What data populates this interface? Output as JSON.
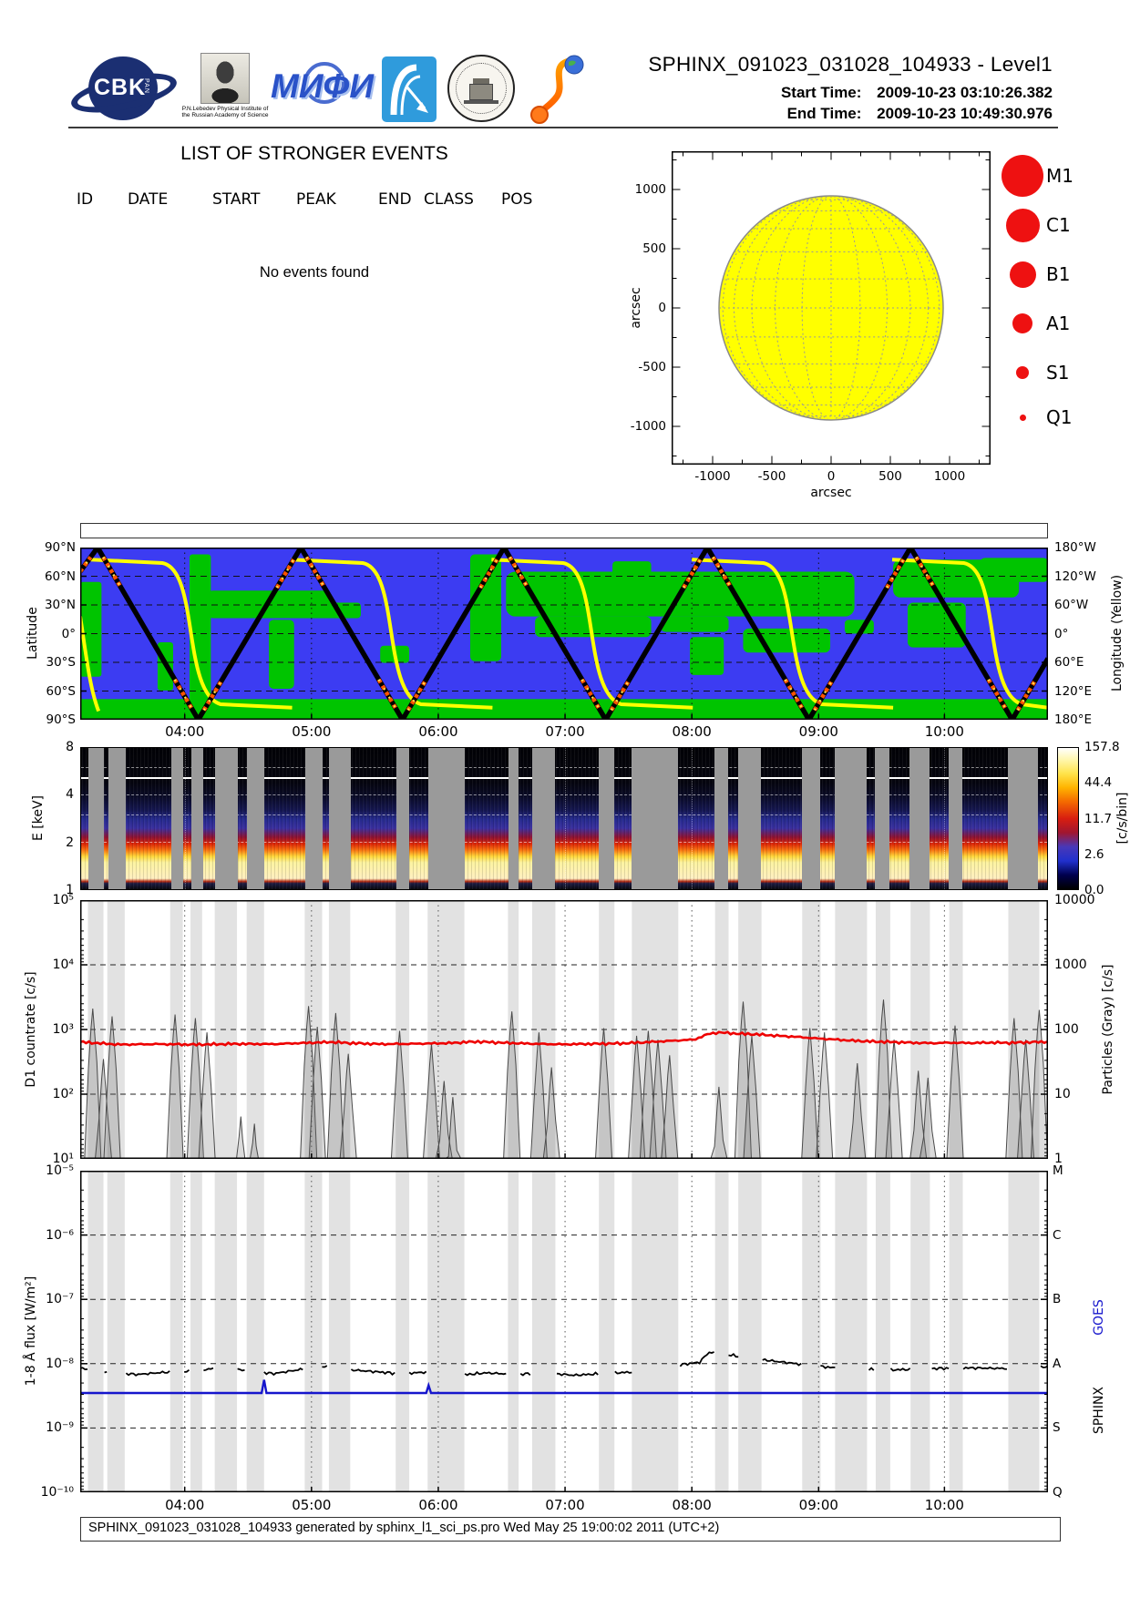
{
  "header": {
    "title": "SPHINX_091023_031028_104933 - Level1",
    "start_label": "Start Time:",
    "start_value": "2009-10-23   03:10:26.382",
    "end_label": "End Time:",
    "end_value": "2009-10-23   10:49:30.976",
    "logos": {
      "cbk_text": "CBK",
      "cbk_sub": "PAN",
      "lebedev_caption": "P.N.Lebedev Physical Institute of the Russian Academy of Science",
      "mephi_text": "МИФИ"
    }
  },
  "events": {
    "title": "LIST OF STRONGER EVENTS",
    "columns": [
      "ID",
      "DATE",
      "START",
      "PEAK",
      "END",
      "CLASS",
      "POS"
    ],
    "empty_message": "No events found"
  },
  "time_axis": {
    "hours": [
      "04:00",
      "05:00",
      "06:00",
      "07:00",
      "08:00",
      "09:00",
      "10:00"
    ],
    "positions_pct": [
      10.8,
      23.9,
      37.0,
      50.1,
      63.2,
      76.3,
      89.3
    ],
    "gaps_pct": [
      [
        0.8,
        1.6
      ],
      [
        2.8,
        1.8
      ],
      [
        9.3,
        1.3
      ],
      [
        11.4,
        1.2
      ],
      [
        13.9,
        2.3
      ],
      [
        17.2,
        1.8
      ],
      [
        23.2,
        1.8
      ],
      [
        25.7,
        2.2
      ],
      [
        32.6,
        1.4
      ],
      [
        35.9,
        3.8
      ],
      [
        44.2,
        1.1
      ],
      [
        46.7,
        2.4
      ],
      [
        53.6,
        1.6
      ],
      [
        57.0,
        4.8
      ],
      [
        65.6,
        1.4
      ],
      [
        68.0,
        2.4
      ],
      [
        74.6,
        1.9
      ],
      [
        78.0,
        3.3
      ],
      [
        82.2,
        1.5
      ],
      [
        85.8,
        2.0
      ],
      [
        89.8,
        1.4
      ],
      [
        95.9,
        3.2
      ]
    ]
  },
  "footer": {
    "text": "SPHINX_091023_031028_104933 generated by sphinx_l1_sci_ps.pro Wed May 25 19:00:02 2011 (UTC+2)"
  },
  "chart_data": [
    {
      "id": "solar-disk",
      "type": "scatter",
      "xlabel": "arcsec",
      "ylabel": "arcsec",
      "x_ticks": [
        -1000,
        -500,
        0,
        500,
        1000
      ],
      "y_ticks": [
        1000,
        500,
        0,
        -500,
        -1000
      ],
      "xlim": [
        -1300,
        1300
      ],
      "ylim": [
        -1320,
        1320
      ],
      "disk_color": "#ffff00",
      "disk_radius_arcsec": 950,
      "events_plotted": [],
      "legend": {
        "marker_color": "#ee1111",
        "entries": [
          {
            "label": "M1",
            "d": 46
          },
          {
            "label": "C1",
            "d": 37
          },
          {
            "label": "B1",
            "d": 29
          },
          {
            "label": "A1",
            "d": 22
          },
          {
            "label": "S1",
            "d": 14
          },
          {
            "label": "Q1",
            "d": 7
          }
        ]
      }
    },
    {
      "id": "orbit-ground-track",
      "type": "line",
      "ylabel": "Latitude",
      "y2label": "Longitude (Yellow)",
      "lat_ticks": [
        "90°N",
        "60°N",
        "30°N",
        "0°",
        "30°S",
        "60°S",
        "90°S"
      ],
      "lon_ticks": [
        "180°W",
        "120°W",
        "60°W",
        "0°",
        "60°E",
        "120°E",
        "180°E"
      ],
      "ocean_color": "#3c3cf2",
      "land_color": "#00c400",
      "track_color": "#000000",
      "lon_curve_color": "#ffff00",
      "track_vertices": [
        [
          0,
          65
        ],
        [
          1.8,
          90
        ],
        [
          12.2,
          -90
        ],
        [
          22.8,
          90
        ],
        [
          33.3,
          -90
        ],
        [
          43.8,
          90
        ],
        [
          54.3,
          -90
        ],
        [
          64.8,
          90
        ],
        [
          75.3,
          -90
        ],
        [
          85.8,
          90
        ],
        [
          96.3,
          -90
        ],
        [
          100,
          -26
        ]
      ],
      "lon_drop_centers_pct": [
        11.5,
        32.2,
        52.9,
        73.6,
        94.3
      ],
      "land_patches": [
        [
          0,
          20,
          2.2,
          55,
          3
        ],
        [
          8,
          55,
          1.6,
          28,
          3
        ],
        [
          11.3,
          4,
          2.2,
          88,
          3
        ],
        [
          13,
          25,
          13,
          16,
          8
        ],
        [
          19.5,
          42,
          2.6,
          40,
          5
        ],
        [
          25,
          32,
          4,
          9,
          4
        ],
        [
          31,
          57,
          3,
          10,
          4
        ],
        [
          40.3,
          4,
          3.2,
          62,
          5
        ],
        [
          44,
          14,
          36,
          26,
          10
        ],
        [
          47,
          40,
          12,
          12,
          6
        ],
        [
          55,
          8,
          4,
          10,
          4
        ],
        [
          60,
          40,
          7,
          9,
          5
        ],
        [
          63,
          52,
          3.5,
          22,
          4
        ],
        [
          68.5,
          47,
          9,
          14,
          6
        ],
        [
          79,
          42,
          3,
          8,
          4
        ],
        [
          84,
          7,
          13,
          22,
          8
        ],
        [
          85.5,
          32,
          6,
          26,
          6
        ],
        [
          93,
          6,
          7,
          14,
          5
        ],
        [
          0,
          88,
          100,
          12,
          0
        ]
      ]
    },
    {
      "id": "spectrogram",
      "type": "heatmap",
      "ylabel": "E [keV]",
      "y_ticks": [
        "8",
        "4",
        "2",
        "1"
      ],
      "y_tick_values": [
        8,
        4,
        2,
        1
      ],
      "e_range": [
        1,
        8
      ],
      "bands": [
        [
          1.0,
          "#08080f"
        ],
        [
          1.09,
          "#1c1c44"
        ],
        [
          1.12,
          "#b02810"
        ],
        [
          1.17,
          "#ffefc0"
        ],
        [
          1.48,
          "#fcf3a0"
        ],
        [
          1.62,
          "#ffd83a"
        ],
        [
          1.78,
          "#f87410"
        ],
        [
          1.95,
          "#dd2505"
        ],
        [
          2.15,
          "#8e1232"
        ],
        [
          2.45,
          "#3a2f9e"
        ],
        [
          2.8,
          "#252a8e"
        ],
        [
          3.2,
          "#141650"
        ],
        [
          3.9,
          "#0a0b28"
        ],
        [
          4.8,
          "#05050f"
        ],
        [
          8,
          "#020206"
        ]
      ],
      "white_line_kev": 5.2,
      "dashed_lines_kev": [
        2,
        3,
        4,
        6
      ],
      "gap_color": "#9a9a9a",
      "colorbar": {
        "label": "[c/s/bin]",
        "ticks": [
          "157.8",
          "44.4",
          "11.7",
          "2.6",
          "0.0"
        ],
        "stops": [
          [
            0,
            "#000000"
          ],
          [
            0.1,
            "#00004d"
          ],
          [
            0.2,
            "#2030cc"
          ],
          [
            0.3,
            "#4838b8"
          ],
          [
            0.4,
            "#a01630"
          ],
          [
            0.5,
            "#d81e10"
          ],
          [
            0.62,
            "#f46a00"
          ],
          [
            0.72,
            "#ffb400"
          ],
          [
            0.82,
            "#ffe44c"
          ],
          [
            0.92,
            "#fff7b0"
          ],
          [
            1,
            "#ffffff"
          ]
        ]
      }
    },
    {
      "id": "d1-countrate",
      "type": "line",
      "ylabel": "D1 countrate [c/s]",
      "y2label": "Particles (Gray) [c/s]",
      "ylim": [
        10,
        100000
      ],
      "y2lim": [
        1,
        10000
      ],
      "y_ticks": [
        "10⁵",
        "10⁴",
        "10³",
        "10²",
        "10¹"
      ],
      "y2_ticks": [
        "10000",
        "1000",
        "100",
        "10",
        "1"
      ],
      "countrate_color": "#ee0000",
      "particles_color": "#4a4a4a",
      "countrate_pts": [
        [
          0,
          640
        ],
        [
          4,
          585
        ],
        [
          8,
          595
        ],
        [
          12,
          585
        ],
        [
          16,
          600
        ],
        [
          20,
          595
        ],
        [
          24,
          625
        ],
        [
          26,
          640
        ],
        [
          28,
          615
        ],
        [
          31,
          595
        ],
        [
          34,
          600
        ],
        [
          38,
          615
        ],
        [
          41,
          650
        ],
        [
          44,
          620
        ],
        [
          47,
          600
        ],
        [
          50,
          590
        ],
        [
          53,
          600
        ],
        [
          56,
          610
        ],
        [
          58,
          630
        ],
        [
          60,
          655
        ],
        [
          62,
          680
        ],
        [
          63.5,
          700
        ],
        [
          65,
          860
        ],
        [
          66,
          900
        ],
        [
          67,
          880
        ],
        [
          68,
          860
        ],
        [
          70,
          840
        ],
        [
          72,
          800
        ],
        [
          74,
          770
        ],
        [
          76,
          730
        ],
        [
          78,
          700
        ],
        [
          80,
          670
        ],
        [
          82,
          650
        ],
        [
          84,
          640
        ],
        [
          86,
          625
        ],
        [
          88,
          615
        ],
        [
          90,
          625
        ],
        [
          92,
          618
        ],
        [
          94,
          628
        ],
        [
          96,
          622
        ],
        [
          98,
          635
        ],
        [
          100,
          645
        ]
      ],
      "particle_spikes": [
        [
          1.3,
          2100
        ],
        [
          2.4,
          350
        ],
        [
          3.3,
          1600
        ],
        [
          9.8,
          1700
        ],
        [
          11.9,
          1500
        ],
        [
          13.1,
          900
        ],
        [
          16.6,
          45
        ],
        [
          18.0,
          35
        ],
        [
          23.6,
          2300
        ],
        [
          24.5,
          1100
        ],
        [
          26.4,
          1800
        ],
        [
          27.7,
          420
        ],
        [
          33.0,
          950
        ],
        [
          36.3,
          600
        ],
        [
          37.6,
          160
        ],
        [
          38.5,
          90
        ],
        [
          44.6,
          1900
        ],
        [
          47.4,
          900
        ],
        [
          48.7,
          260
        ],
        [
          54.1,
          1050
        ],
        [
          57.5,
          800
        ],
        [
          58.7,
          950
        ],
        [
          59.7,
          700
        ],
        [
          60.9,
          400
        ],
        [
          66.0,
          130
        ],
        [
          68.5,
          2700
        ],
        [
          69.4,
          800
        ],
        [
          75.4,
          1050
        ],
        [
          76.9,
          900
        ],
        [
          80.3,
          300
        ],
        [
          83.0,
          2900
        ],
        [
          84.1,
          700
        ],
        [
          86.6,
          230
        ],
        [
          87.6,
          180
        ],
        [
          90.4,
          1150
        ],
        [
          96.5,
          1500
        ],
        [
          97.7,
          700
        ],
        [
          99.1,
          2000
        ]
      ]
    },
    {
      "id": "xray-flux",
      "type": "line",
      "ylabel": "1-8 Å flux [W/m²]",
      "ylim": [
        1e-10,
        1e-05
      ],
      "y_ticks": [
        "10⁻⁵",
        "10⁻⁶",
        "10⁻⁷",
        "10⁻⁸",
        "10⁻⁹",
        "10⁻¹⁰"
      ],
      "goes_classes": [
        "M",
        "C",
        "B",
        "A",
        "S",
        "Q"
      ],
      "series_labels": {
        "sphinx": "SPHINX",
        "goes": "GOES"
      },
      "sphinx_color": "#000000",
      "goes_color": "#1515cc",
      "goes_level": 3.5e-09,
      "goes_blips": [
        [
          19,
          5.6e-09
        ],
        [
          36,
          4.6e-09
        ]
      ],
      "sphinx_pts": [
        [
          0,
          8.5e-09
        ],
        [
          3,
          7.2e-09
        ],
        [
          6,
          6.8e-09
        ],
        [
          9,
          7.4e-09
        ],
        [
          12,
          7.8e-09
        ],
        [
          15,
          8.8e-09
        ],
        [
          17,
          7.8e-09
        ],
        [
          20,
          7e-09
        ],
        [
          23,
          8.2e-09
        ],
        [
          25,
          9.2e-09
        ],
        [
          27,
          8.2e-09
        ],
        [
          30,
          7.6e-09
        ],
        [
          33,
          7e-09
        ],
        [
          36,
          7.4e-09
        ],
        [
          39,
          6.6e-09
        ],
        [
          42,
          7.2e-09
        ],
        [
          45,
          6.8e-09
        ],
        [
          48,
          7.2e-09
        ],
        [
          51,
          6.6e-09
        ],
        [
          54,
          7e-09
        ],
        [
          57,
          7.4e-09
        ],
        [
          60,
          9.2e-09
        ],
        [
          62,
          9.6e-09
        ],
        [
          64,
          1.05e-08
        ],
        [
          65,
          1.5e-08
        ],
        [
          66,
          1.45e-08
        ],
        [
          68,
          1.3e-08
        ],
        [
          70,
          1.18e-08
        ],
        [
          72,
          1.08e-08
        ],
        [
          74,
          1e-08
        ],
        [
          76,
          9.2e-09
        ],
        [
          78,
          8.6e-09
        ],
        [
          80,
          8.2e-09
        ],
        [
          84,
          8e-09
        ],
        [
          88,
          8.4e-09
        ],
        [
          92,
          8.6e-09
        ],
        [
          96,
          8.4e-09
        ],
        [
          100,
          9e-09
        ]
      ]
    }
  ]
}
